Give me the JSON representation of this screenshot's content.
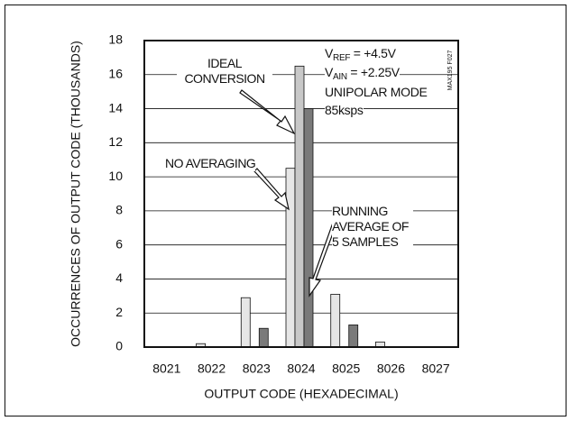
{
  "chart_data": {
    "type": "bar",
    "figure_id": "MAX195 F027",
    "x_label": "OUTPUT CODE (HEXADECIMAL)",
    "y_label": "OCCURRENCES OF OUTPUT CODE (THOUSANDS)",
    "categories": [
      "8021",
      "8022",
      "8023",
      "8024",
      "8025",
      "8026",
      "8027"
    ],
    "series": [
      {
        "name": "NO AVERAGING",
        "color": "#e6e6e6",
        "values": [
          null,
          0.2,
          2.9,
          10.5,
          3.1,
          0.3,
          null
        ]
      },
      {
        "name": "IDEAL CONVERSION",
        "color": "#c8c8c8",
        "values": [
          null,
          null,
          null,
          16.5,
          null,
          null,
          null
        ]
      },
      {
        "name": "RUNNING AVERAGE OF 5 SAMPLES",
        "color": "#7a7a7a",
        "values": [
          null,
          null,
          1.1,
          14,
          1.3,
          null,
          null
        ]
      }
    ],
    "conditions": [
      {
        "symbol": "V",
        "subscript": "REF",
        "value": " = +4.5V"
      },
      {
        "symbol": "V",
        "subscript": "AIN",
        "value": " = +2.25V"
      }
    ],
    "mode": "UNIPOLAR MODE",
    "rate": "85ksps",
    "ylim": [
      0,
      18
    ],
    "yticks": [
      0,
      2,
      4,
      6,
      8,
      10,
      12,
      14,
      16,
      18
    ],
    "grid": true
  }
}
